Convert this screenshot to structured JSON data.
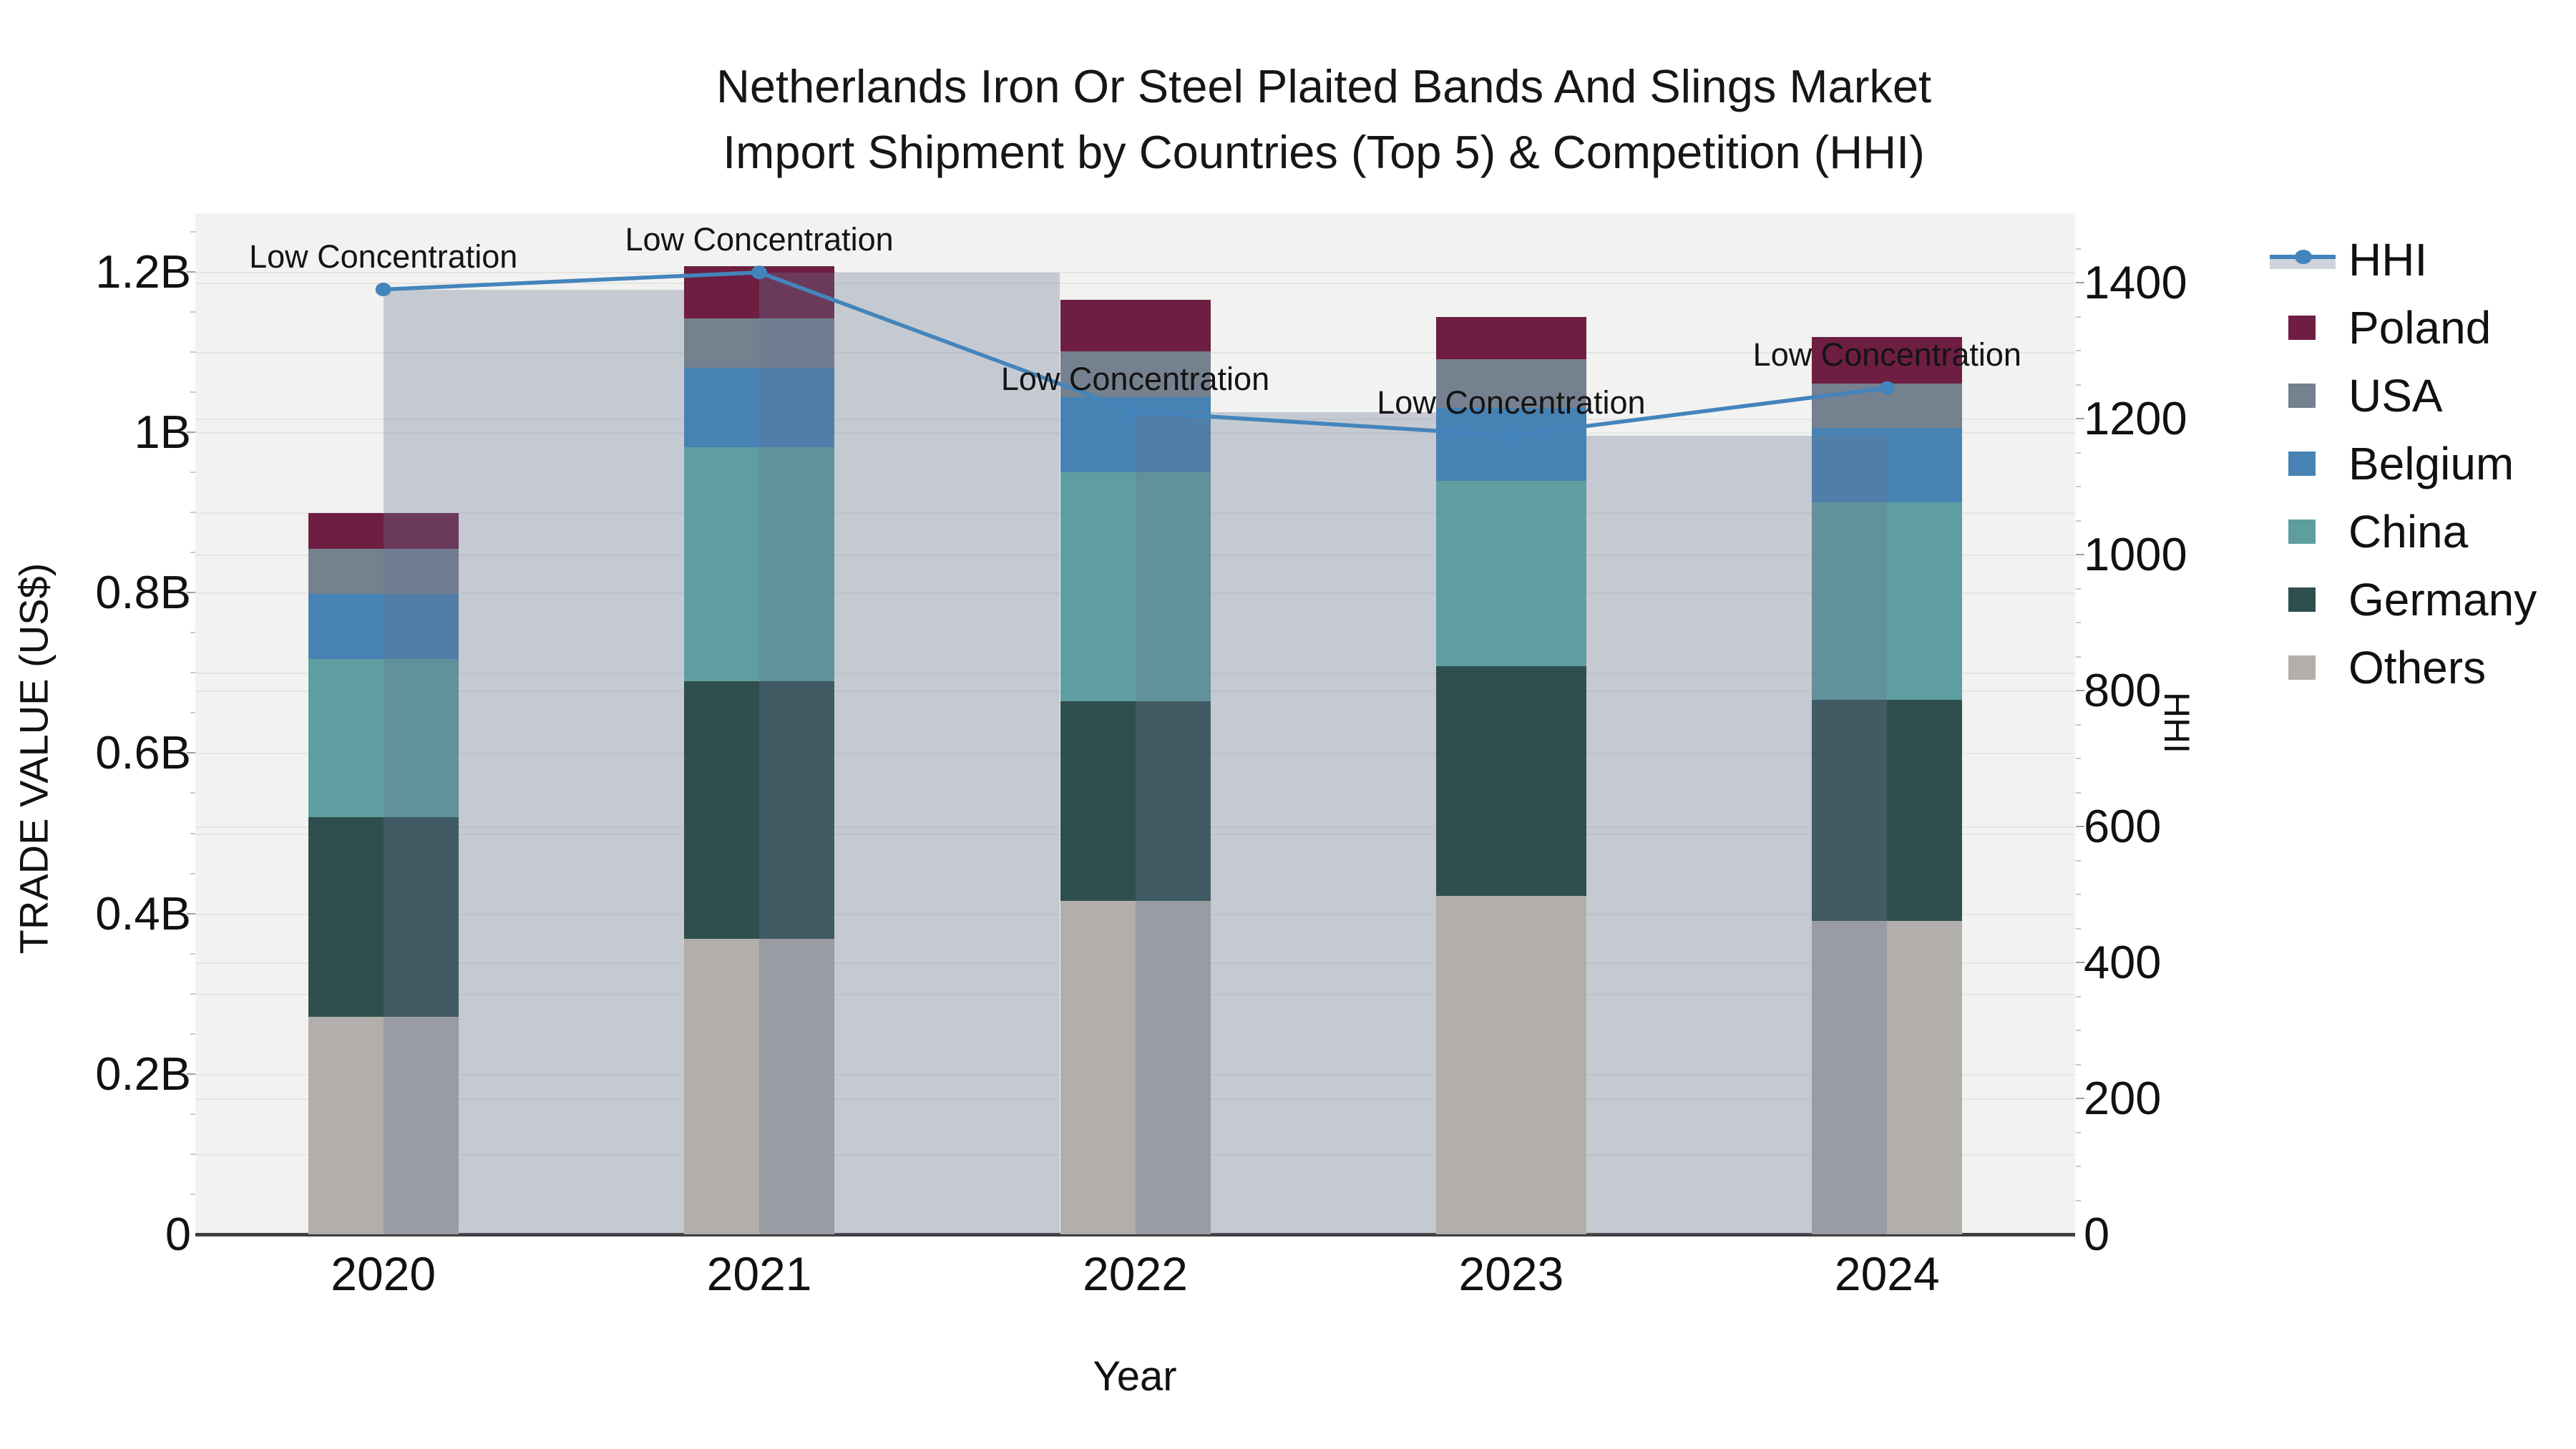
{
  "title": {
    "line1": "Netherlands Iron Or Steel Plaited Bands And Slings Market",
    "line2": "Import Shipment by Countries (Top 5) & Competition (HHI)"
  },
  "chart_data": {
    "type": "bar+line",
    "subtype": "stacked bars (left axis) with HHI line and translucent HHI bands (right axis)",
    "categories": [
      "2020",
      "2021",
      "2022",
      "2023",
      "2024"
    ],
    "xlabel": "Year",
    "ylabel_left": "TRADE VALUE (US$)",
    "ylabel_right": "HHI",
    "y_left": {
      "tick_labels": [
        "0",
        "0.2B",
        "0.4B",
        "0.6B",
        "0.8B",
        "1B",
        "1.2B"
      ],
      "tick_values": [
        0,
        0.2,
        0.4,
        0.6,
        0.8,
        1.0,
        1.2
      ],
      "units": "billions of US$",
      "range": [
        0,
        1.273
      ]
    },
    "y_right": {
      "tick_labels": [
        "0",
        "200",
        "400",
        "600",
        "800",
        "1000",
        "1200",
        "1400"
      ],
      "tick_values": [
        0,
        200,
        400,
        600,
        800,
        1000,
        1200,
        1400
      ],
      "range": [
        0,
        1502
      ]
    },
    "series": [
      {
        "name": "Others",
        "color": "#B1AEAB",
        "values": [
          0.271,
          0.368,
          0.416,
          0.422,
          0.391
        ]
      },
      {
        "name": "Germany",
        "color": "#2F4F4F",
        "values": [
          0.249,
          0.322,
          0.249,
          0.286,
          0.275
        ]
      },
      {
        "name": "China",
        "color": "#5F9EA0",
        "values": [
          0.197,
          0.291,
          0.285,
          0.231,
          0.247
        ]
      },
      {
        "name": "Belgium",
        "color": "#4682B4",
        "values": [
          0.081,
          0.099,
          0.094,
          0.091,
          0.092
        ]
      },
      {
        "name": "USA",
        "color": "#75818F",
        "values": [
          0.057,
          0.062,
          0.057,
          0.061,
          0.056
        ]
      },
      {
        "name": "Poland",
        "color": "#6E1E42",
        "values": [
          0.044,
          0.065,
          0.064,
          0.053,
          0.058
        ]
      }
    ],
    "totals_billion": [
      0.899,
      1.207,
      1.165,
      1.144,
      1.119
    ],
    "hhi": {
      "name": "HHI",
      "line_color": "#4484BC",
      "band_color": "rgba(104,118,145,0.32)",
      "values": [
        1390,
        1415,
        1210,
        1175,
        1245
      ],
      "annotation_text": "Low Concentration"
    },
    "legend": {
      "items": [
        "HHI",
        "Poland",
        "USA",
        "Belgium",
        "China",
        "Germany",
        "Others"
      ],
      "position": "right"
    },
    "grid": "on"
  }
}
